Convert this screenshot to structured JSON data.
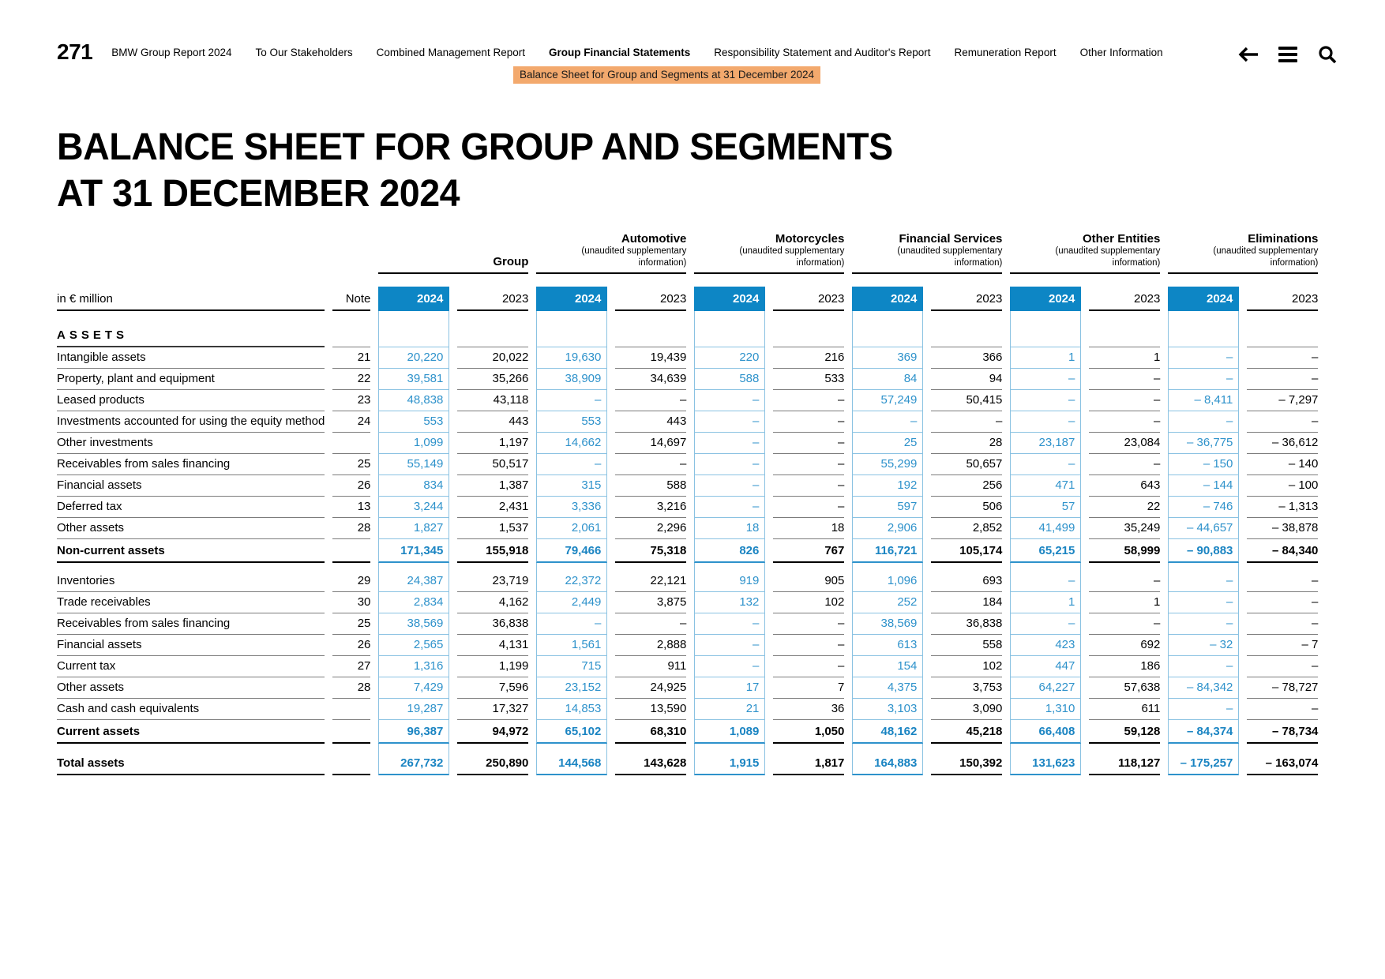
{
  "page": {
    "number": "271"
  },
  "nav": {
    "items": [
      {
        "label": "BMW Group Report 2024",
        "active": false
      },
      {
        "label": "To Our Stakeholders",
        "active": false
      },
      {
        "label": "Combined Management Report",
        "active": false
      },
      {
        "label": "Group Financial Statements",
        "active": true
      },
      {
        "label": "Responsibility Statement and Auditor's Report",
        "active": false
      },
      {
        "label": "Remuneration Report",
        "active": false
      },
      {
        "label": "Other Information",
        "active": false
      }
    ],
    "breadcrumb": "Balance Sheet for Group and Segments at 31 December 2024",
    "icons": [
      "back-arrow",
      "menu",
      "search"
    ]
  },
  "title": {
    "line1": "BALANCE SHEET FOR GROUP AND SEGMENTS",
    "line2": "AT 31 DECEMBER 2024"
  },
  "colors": {
    "accent_blue": "#0d86c5",
    "value_blue": "#2e92cb",
    "highlight_orange": "#f3a96d"
  },
  "table": {
    "unit_label": "in € million",
    "note_label": "Note",
    "section_label": "ASSETS",
    "years": [
      "2024",
      "2023"
    ],
    "column_groups": [
      {
        "name": "Group",
        "sub": ""
      },
      {
        "name": "Automotive",
        "sub": "(unaudited supplementary information)"
      },
      {
        "name": "Motorcycles",
        "sub": "(unaudited supplementary information)"
      },
      {
        "name": "Financial Services",
        "sub": "(unaudited supplementary information)"
      },
      {
        "name": "Other Entities",
        "sub": "(unaudited supplementary information)"
      },
      {
        "name": "Eliminations",
        "sub": "(unaudited supplementary information)"
      }
    ],
    "rows": [
      {
        "label": "Intangible assets",
        "note": "21",
        "bold": false,
        "gap_after": false,
        "values": [
          "20,220",
          "20,022",
          "19,630",
          "19,439",
          "220",
          "216",
          "369",
          "366",
          "1",
          "1",
          "–",
          "–"
        ]
      },
      {
        "label": "Property, plant and equipment",
        "note": "22",
        "bold": false,
        "gap_after": false,
        "values": [
          "39,581",
          "35,266",
          "38,909",
          "34,639",
          "588",
          "533",
          "84",
          "94",
          "–",
          "–",
          "–",
          "–"
        ]
      },
      {
        "label": "Leased products",
        "note": "23",
        "bold": false,
        "gap_after": false,
        "values": [
          "48,838",
          "43,118",
          "–",
          "–",
          "–",
          "–",
          "57,249",
          "50,415",
          "–",
          "–",
          "– 8,411",
          "– 7,297"
        ]
      },
      {
        "label": "Investments accounted for using the equity method",
        "note": "24",
        "bold": false,
        "gap_after": false,
        "values": [
          "553",
          "443",
          "553",
          "443",
          "–",
          "–",
          "–",
          "–",
          "–",
          "–",
          "–",
          "–"
        ]
      },
      {
        "label": "Other investments",
        "note": "",
        "bold": false,
        "gap_after": false,
        "values": [
          "1,099",
          "1,197",
          "14,662",
          "14,697",
          "–",
          "–",
          "25",
          "28",
          "23,187",
          "23,084",
          "– 36,775",
          "– 36,612"
        ]
      },
      {
        "label": "Receivables from sales financing",
        "note": "25",
        "bold": false,
        "gap_after": false,
        "values": [
          "55,149",
          "50,517",
          "–",
          "–",
          "–",
          "–",
          "55,299",
          "50,657",
          "–",
          "–",
          "– 150",
          "– 140"
        ]
      },
      {
        "label": "Financial assets",
        "note": "26",
        "bold": false,
        "gap_after": false,
        "values": [
          "834",
          "1,387",
          "315",
          "588",
          "–",
          "–",
          "192",
          "256",
          "471",
          "643",
          "– 144",
          "– 100"
        ]
      },
      {
        "label": "Deferred tax",
        "note": "13",
        "bold": false,
        "gap_after": false,
        "values": [
          "3,244",
          "2,431",
          "3,336",
          "3,216",
          "–",
          "–",
          "597",
          "506",
          "57",
          "22",
          "– 746",
          "– 1,313"
        ]
      },
      {
        "label": "Other assets",
        "note": "28",
        "bold": false,
        "gap_after": false,
        "values": [
          "1,827",
          "1,537",
          "2,061",
          "2,296",
          "18",
          "18",
          "2,906",
          "2,852",
          "41,499",
          "35,249",
          "– 44,657",
          "– 38,878"
        ]
      },
      {
        "label": "Non-current assets",
        "note": "",
        "bold": true,
        "gap_after": true,
        "values": [
          "171,345",
          "155,918",
          "79,466",
          "75,318",
          "826",
          "767",
          "116,721",
          "105,174",
          "65,215",
          "58,999",
          "– 90,883",
          "– 84,340"
        ]
      },
      {
        "label": "Inventories",
        "note": "29",
        "bold": false,
        "gap_after": false,
        "values": [
          "24,387",
          "23,719",
          "22,372",
          "22,121",
          "919",
          "905",
          "1,096",
          "693",
          "–",
          "–",
          "–",
          "–"
        ]
      },
      {
        "label": "Trade receivables",
        "note": "30",
        "bold": false,
        "gap_after": false,
        "values": [
          "2,834",
          "4,162",
          "2,449",
          "3,875",
          "132",
          "102",
          "252",
          "184",
          "1",
          "1",
          "–",
          "–"
        ]
      },
      {
        "label": "Receivables from sales financing",
        "note": "25",
        "bold": false,
        "gap_after": false,
        "values": [
          "38,569",
          "36,838",
          "–",
          "–",
          "–",
          "–",
          "38,569",
          "36,838",
          "–",
          "–",
          "–",
          "–"
        ]
      },
      {
        "label": "Financial assets",
        "note": "26",
        "bold": false,
        "gap_after": false,
        "values": [
          "2,565",
          "4,131",
          "1,561",
          "2,888",
          "–",
          "–",
          "613",
          "558",
          "423",
          "692",
          "– 32",
          "– 7"
        ]
      },
      {
        "label": "Current tax",
        "note": "27",
        "bold": false,
        "gap_after": false,
        "values": [
          "1,316",
          "1,199",
          "715",
          "911",
          "–",
          "–",
          "154",
          "102",
          "447",
          "186",
          "–",
          "–"
        ]
      },
      {
        "label": "Other assets",
        "note": "28",
        "bold": false,
        "gap_after": false,
        "values": [
          "7,429",
          "7,596",
          "23,152",
          "24,925",
          "17",
          "7",
          "4,375",
          "3,753",
          "64,227",
          "57,638",
          "– 84,342",
          "– 78,727"
        ]
      },
      {
        "label": "Cash and cash equivalents",
        "note": "",
        "bold": false,
        "gap_after": false,
        "values": [
          "19,287",
          "17,327",
          "14,853",
          "13,590",
          "21",
          "36",
          "3,103",
          "3,090",
          "1,310",
          "611",
          "–",
          "–"
        ]
      },
      {
        "label": "Current assets",
        "note": "",
        "bold": true,
        "gap_after": true,
        "values": [
          "96,387",
          "94,972",
          "65,102",
          "68,310",
          "1,089",
          "1,050",
          "48,162",
          "45,218",
          "66,408",
          "59,128",
          "– 84,374",
          "– 78,734"
        ]
      },
      {
        "label": "Total assets",
        "note": "",
        "bold": true,
        "gap_after": false,
        "values": [
          "267,732",
          "250,890",
          "144,568",
          "143,628",
          "1,915",
          "1,817",
          "164,883",
          "150,392",
          "131,623",
          "118,127",
          "– 175,257",
          "– 163,074"
        ]
      }
    ]
  }
}
